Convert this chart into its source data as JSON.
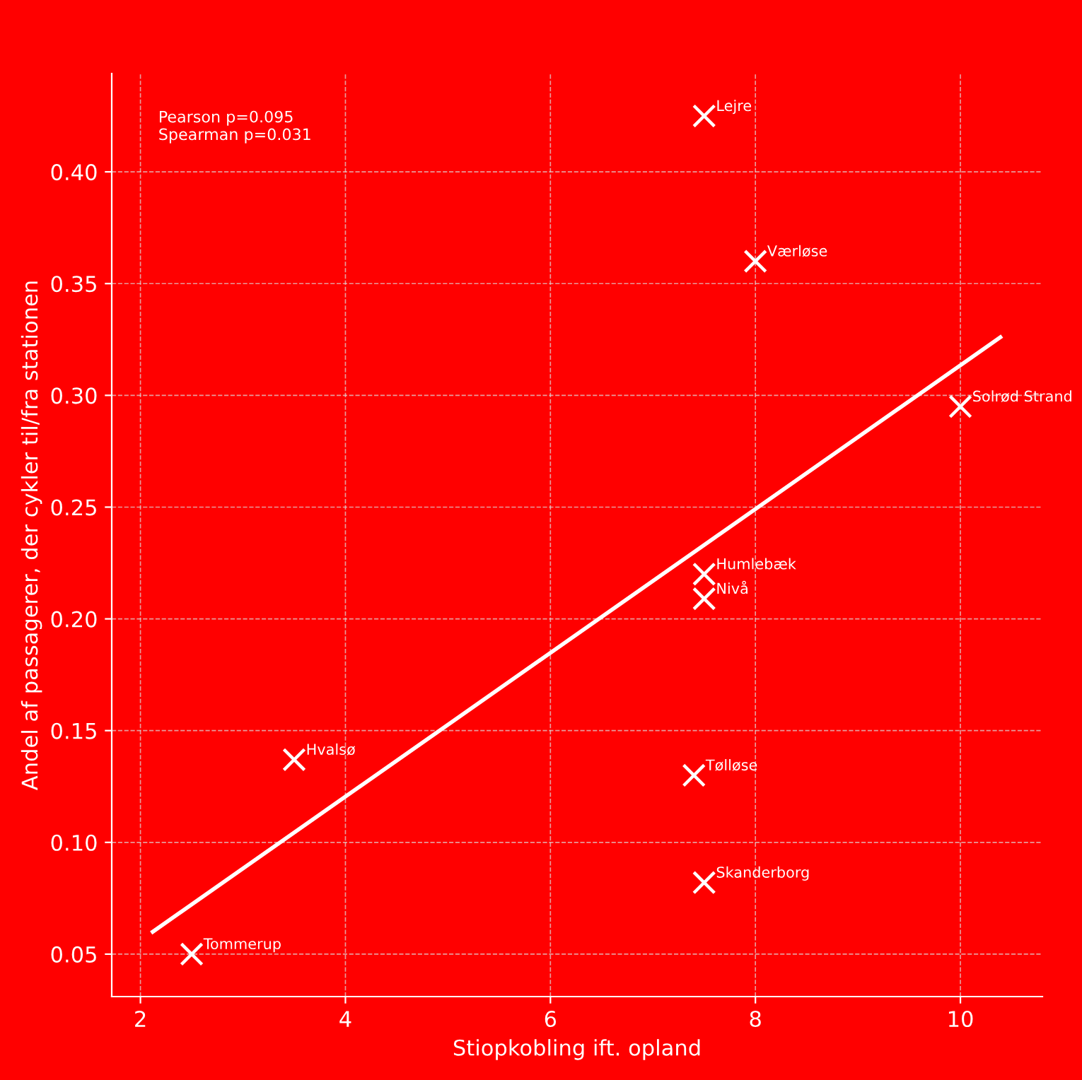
{
  "chart_data": {
    "type": "scatter",
    "xlabel": "Stiopkobling ift. opland",
    "ylabel": "Andel af passagerer, der cykler til/fra stationen",
    "x": [
      7.5,
      8,
      10,
      7.5,
      7.5,
      3.5,
      7.4,
      7.5,
      2.5
    ],
    "series": [
      {
        "color": "#ffffff",
        "marker": "cross",
        "values": [
          0.425,
          0.36,
          0.295,
          0.22,
          0.209,
          0.137,
          0.13,
          0.082,
          0.05
        ]
      },
      {
        "type": "line",
        "color": "#ffffff",
        "x": [
          2.12,
          10.39
        ],
        "values": [
          0.06,
          0.326
        ]
      }
    ],
    "annotations": [
      "Pearson p=0.095\nSpearman p=0.031",
      {
        "text": "Lejre",
        "x": 7.5,
        "y": 0.425
      },
      {
        "text": "Værløse",
        "x": 8,
        "y": 0.36
      },
      {
        "text": "Solrød Strand",
        "x": 10,
        "y": 0.295
      },
      {
        "text": "Humlebæk",
        "x": 7.5,
        "y": 0.22
      },
      {
        "text": "Nivå",
        "x": 7.5,
        "y": 0.209
      },
      {
        "text": "Hvalsø",
        "x": 3.5,
        "y": 0.137
      },
      {
        "text": "Tølløse",
        "x": 7.4,
        "y": 0.13
      },
      {
        "text": "Skanderborg",
        "x": 7.5,
        "y": 0.082
      },
      {
        "text": "Tommerup",
        "x": 2.5,
        "y": 0.05
      }
    ],
    "xlim": [
      1.72,
      10.8
    ],
    "ylim": [
      0.031,
      0.444
    ],
    "xticks": [
      2,
      4,
      6,
      8,
      10
    ],
    "yticks": [
      {
        "value": 0.05,
        "label": "0.05"
      },
      {
        "value": 0.1,
        "label": "0.10"
      },
      {
        "value": 0.15,
        "label": "0.15"
      },
      {
        "value": 0.2,
        "label": "0.20"
      },
      {
        "value": 0.25,
        "label": "0.25"
      },
      {
        "value": 0.3,
        "label": "0.30"
      },
      {
        "value": 0.35,
        "label": "0.35"
      },
      {
        "value": 0.4,
        "label": "0.40"
      }
    ],
    "grid": true
  }
}
